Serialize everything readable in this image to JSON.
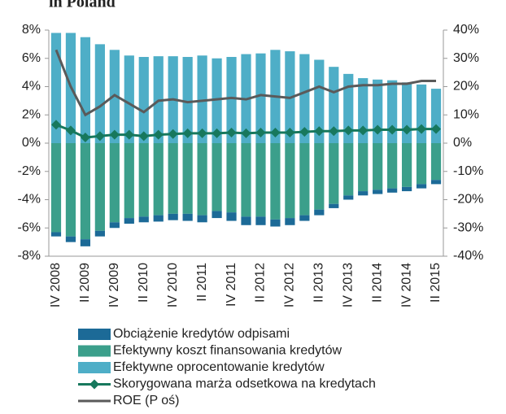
{
  "chart_data": {
    "type": "bar",
    "title": "in Poland",
    "categories": [
      "IV 2008",
      null,
      "II 2009",
      null,
      "IV 2009",
      null,
      "II 2010",
      null,
      "IV 2010",
      null,
      "II 2011",
      null,
      "IV 2011",
      null,
      "II 2012",
      null,
      "IV 2012",
      null,
      "II 2013",
      null,
      "IV 2013",
      null,
      "II 2014",
      null,
      "IV 2014",
      null,
      "II 2015"
    ],
    "ylim": [
      -8,
      8
    ],
    "yticks": [
      {
        "value": -8,
        "label": "-8%"
      },
      {
        "value": -6,
        "label": "-6%"
      },
      {
        "value": -4,
        "label": "-4%"
      },
      {
        "value": -2,
        "label": "-2%"
      },
      {
        "value": 0,
        "label": "0%"
      },
      {
        "value": 2,
        "label": "2%"
      },
      {
        "value": 4,
        "label": "4%"
      },
      {
        "value": 6,
        "label": "6%"
      },
      {
        "value": 8,
        "label": "8%"
      }
    ],
    "y2lim": [
      -40,
      40
    ],
    "y2ticks": [
      {
        "value": -40,
        "label": "-40%"
      },
      {
        "value": -30,
        "label": "-30%"
      },
      {
        "value": -20,
        "label": "-20%"
      },
      {
        "value": -10,
        "label": "-10%"
      },
      {
        "value": 0,
        "label": "0%"
      },
      {
        "value": 10,
        "label": "10%"
      },
      {
        "value": 20,
        "label": "20%"
      },
      {
        "value": 30,
        "label": "30%"
      },
      {
        "value": 40,
        "label": "40%"
      }
    ],
    "stacked": true,
    "series": [
      {
        "name": "Obciążenie kredytów odpisami",
        "type": "bar",
        "color": "#1c6a97",
        "values": [
          -0.3,
          -0.4,
          -0.5,
          -0.4,
          -0.4,
          -0.4,
          -0.4,
          -0.45,
          -0.45,
          -0.5,
          -0.5,
          -0.5,
          -0.6,
          -0.6,
          -0.6,
          -0.5,
          -0.5,
          -0.4,
          -0.4,
          -0.3,
          -0.3,
          -0.3,
          -0.3,
          -0.3,
          -0.3,
          -0.3,
          -0.3
        ]
      },
      {
        "name": "Efektywny koszt finansowania kredytów",
        "type": "bar",
        "color": "#3b9f8b",
        "values": [
          -6.3,
          -6.6,
          -6.8,
          -6.2,
          -5.6,
          -5.3,
          -5.2,
          -5.1,
          -5.0,
          -5.0,
          -5.1,
          -4.8,
          -4.9,
          -5.2,
          -5.2,
          -5.4,
          -5.3,
          -5.1,
          -4.7,
          -4.3,
          -3.7,
          -3.4,
          -3.3,
          -3.2,
          -3.1,
          -2.9,
          -2.6
        ]
      },
      {
        "name": "Efektywne oprocentowanie kredytów",
        "type": "bar",
        "color": "#4eaec7",
        "values": [
          7.8,
          7.8,
          7.5,
          7.0,
          6.6,
          6.2,
          6.1,
          6.15,
          6.15,
          6.1,
          6.2,
          6.0,
          6.1,
          6.3,
          6.35,
          6.6,
          6.5,
          6.3,
          5.9,
          5.4,
          4.9,
          4.6,
          4.5,
          4.45,
          4.3,
          4.15,
          3.85
        ]
      },
      {
        "name": "Skorygowana marża odsetkowa na kredytach",
        "type": "line",
        "marker": "diamond",
        "color": "#17785d",
        "values": [
          1.3,
          0.9,
          0.4,
          0.5,
          0.6,
          0.6,
          0.5,
          0.6,
          0.65,
          0.7,
          0.7,
          0.7,
          0.75,
          0.7,
          0.75,
          0.75,
          0.75,
          0.8,
          0.85,
          0.85,
          0.9,
          0.9,
          0.95,
          0.95,
          0.95,
          1.0,
          1.0
        ]
      },
      {
        "name": "ROE (P oś)",
        "type": "line",
        "axis": "y2",
        "color": "#5a5a5a",
        "values": [
          33,
          20,
          10,
          13,
          17,
          14,
          11,
          15,
          15.5,
          14.5,
          15,
          15.5,
          16,
          15.5,
          17,
          16.5,
          16,
          18,
          20,
          18,
          20,
          20.5,
          20.5,
          21,
          21,
          22,
          22
        ]
      }
    ]
  }
}
